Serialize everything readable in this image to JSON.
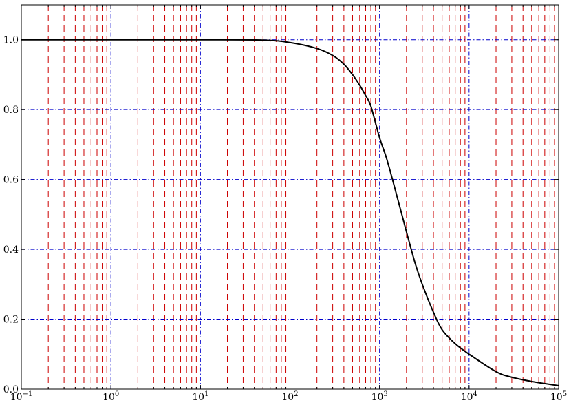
{
  "chart_data": {
    "type": "line",
    "title": "",
    "xlabel": "",
    "ylabel": "",
    "x_scale": "log",
    "xlim": [
      0.1,
      100000
    ],
    "ylim": [
      0.0,
      1.1
    ],
    "x_ticks": [
      {
        "base": "10",
        "exp": "−1",
        "value": 0.1
      },
      {
        "base": "10",
        "exp": "0",
        "value": 1
      },
      {
        "base": "10",
        "exp": "1",
        "value": 10
      },
      {
        "base": "10",
        "exp": "2",
        "value": 100
      },
      {
        "base": "10",
        "exp": "3",
        "value": 1000
      },
      {
        "base": "10",
        "exp": "4",
        "value": 10000
      },
      {
        "base": "10",
        "exp": "5",
        "value": 100000
      }
    ],
    "y_ticks": [
      {
        "label": "0.0",
        "value": 0.0
      },
      {
        "label": "0.2",
        "value": 0.2
      },
      {
        "label": "0.4",
        "value": 0.4
      },
      {
        "label": "0.6",
        "value": 0.6
      },
      {
        "label": "0.8",
        "value": 0.8
      },
      {
        "label": "1.0",
        "value": 1.0
      }
    ],
    "grid": {
      "major": {
        "on": true,
        "color": "#0000cc",
        "style": "dash-dot"
      },
      "minor_x": {
        "on": true,
        "color": "#cc0000",
        "style": "dashed"
      }
    },
    "series": [
      {
        "color": "#000000",
        "x": [
          0.1,
          1,
          10,
          50,
          100,
          200,
          300,
          400,
          500,
          600,
          700,
          800,
          1000,
          1200,
          1500,
          2000,
          2500,
          3000,
          4000,
          5000,
          7000,
          10000,
          20000,
          30000,
          50000,
          100000
        ],
        "y": [
          1.0,
          1.0,
          1.0,
          0.999,
          0.992,
          0.975,
          0.955,
          0.93,
          0.9,
          0.87,
          0.84,
          0.81,
          0.72,
          0.66,
          0.57,
          0.45,
          0.36,
          0.3,
          0.22,
          0.17,
          0.13,
          0.1,
          0.05,
          0.034,
          0.022,
          0.01
        ]
      }
    ]
  }
}
